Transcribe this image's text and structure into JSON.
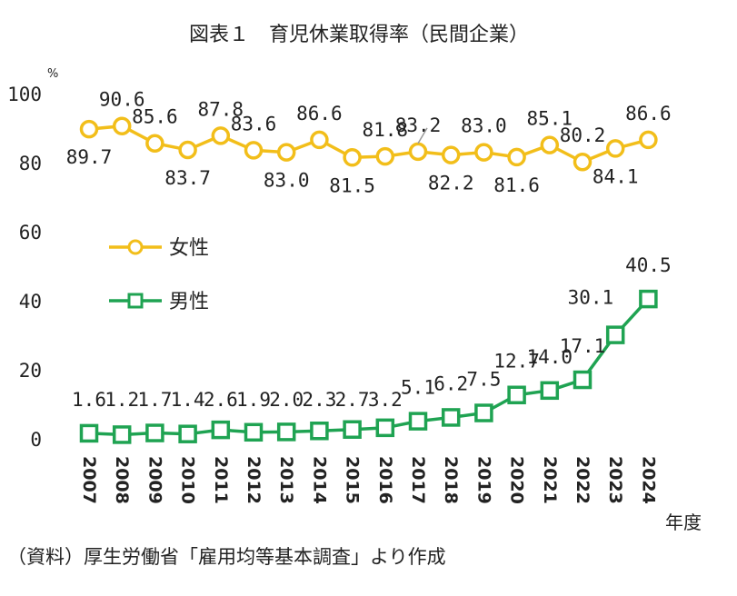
{
  "chart_data": {
    "type": "line",
    "title": "図表１　育児休業取得率（民間企業）",
    "y_unit": "%",
    "x_unit": "年度",
    "ylim": [
      0,
      100
    ],
    "yticks": [
      "0",
      "20",
      "40",
      "60",
      "80",
      "100"
    ],
    "categories": [
      "2007",
      "2008",
      "2009",
      "2010",
      "2011",
      "2012",
      "2013",
      "2014",
      "2015",
      "2016",
      "2017",
      "2018",
      "2019",
      "2020",
      "2021",
      "2022",
      "2023",
      "2024"
    ],
    "legend_position": "left-middle",
    "series": [
      {
        "name": "女性",
        "marker": "circle",
        "color": "#F2BE1A",
        "values": [
          89.7,
          90.6,
          85.6,
          83.7,
          87.8,
          83.6,
          83.0,
          86.6,
          81.5,
          81.8,
          83.2,
          82.2,
          83.0,
          81.6,
          85.1,
          80.2,
          84.1,
          86.6
        ],
        "labels": [
          "89.7",
          "90.6",
          "85.6",
          "83.7",
          "87.8",
          "83.6",
          "83.0",
          "86.6",
          "81.5",
          "81.8",
          "83.2",
          "82.2",
          "83.0",
          "81.6",
          "85.1",
          "80.2",
          "84.1",
          "86.6"
        ]
      },
      {
        "name": "男性",
        "marker": "square",
        "color": "#1FA352",
        "values": [
          1.6,
          1.2,
          1.7,
          1.4,
          2.6,
          1.9,
          2.0,
          2.3,
          2.7,
          3.2,
          5.1,
          6.2,
          7.5,
          12.7,
          14.0,
          17.1,
          30.1,
          40.5
        ],
        "labels": [
          "1.6",
          "1.2",
          "1.7",
          "1.4",
          "2.6",
          "1.9",
          "2.0",
          "2.3",
          "2.7",
          "3.2",
          "5.1",
          "6.2",
          "7.5",
          "12.7",
          "14.0",
          "17.1",
          "30.1",
          "40.5"
        ]
      }
    ],
    "source": "（資料）厚生労働省「雇用均等基本調査」より作成"
  }
}
